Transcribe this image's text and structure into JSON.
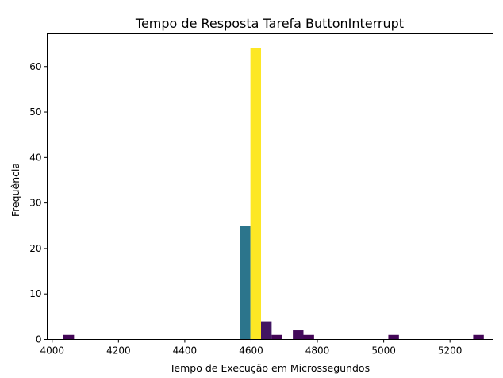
{
  "chart_data": {
    "type": "bar",
    "title": "Tempo de Resposta Tarefa ButtonInterrupt",
    "xlabel": "Tempo de Execução em Microssegundos",
    "ylabel": "Frequência",
    "xlim": [
      3985,
      5330
    ],
    "ylim": [
      0,
      67.2
    ],
    "x_ticks": [
      4000,
      4200,
      4400,
      4600,
      4800,
      5000,
      5200
    ],
    "y_ticks": [
      0,
      10,
      20,
      30,
      40,
      50,
      60
    ],
    "grid": false,
    "colormap": "viridis",
    "bins": [
      {
        "start": 4034,
        "end": 4066,
        "count": 1
      },
      {
        "start": 4566,
        "end": 4598,
        "count": 25
      },
      {
        "start": 4598,
        "end": 4630,
        "count": 64
      },
      {
        "start": 4630,
        "end": 4662,
        "count": 4
      },
      {
        "start": 4662,
        "end": 4694,
        "count": 1
      },
      {
        "start": 4726,
        "end": 4758,
        "count": 2
      },
      {
        "start": 4758,
        "end": 4790,
        "count": 1
      },
      {
        "start": 5014,
        "end": 5046,
        "count": 1
      },
      {
        "start": 5270,
        "end": 5302,
        "count": 1
      }
    ]
  }
}
